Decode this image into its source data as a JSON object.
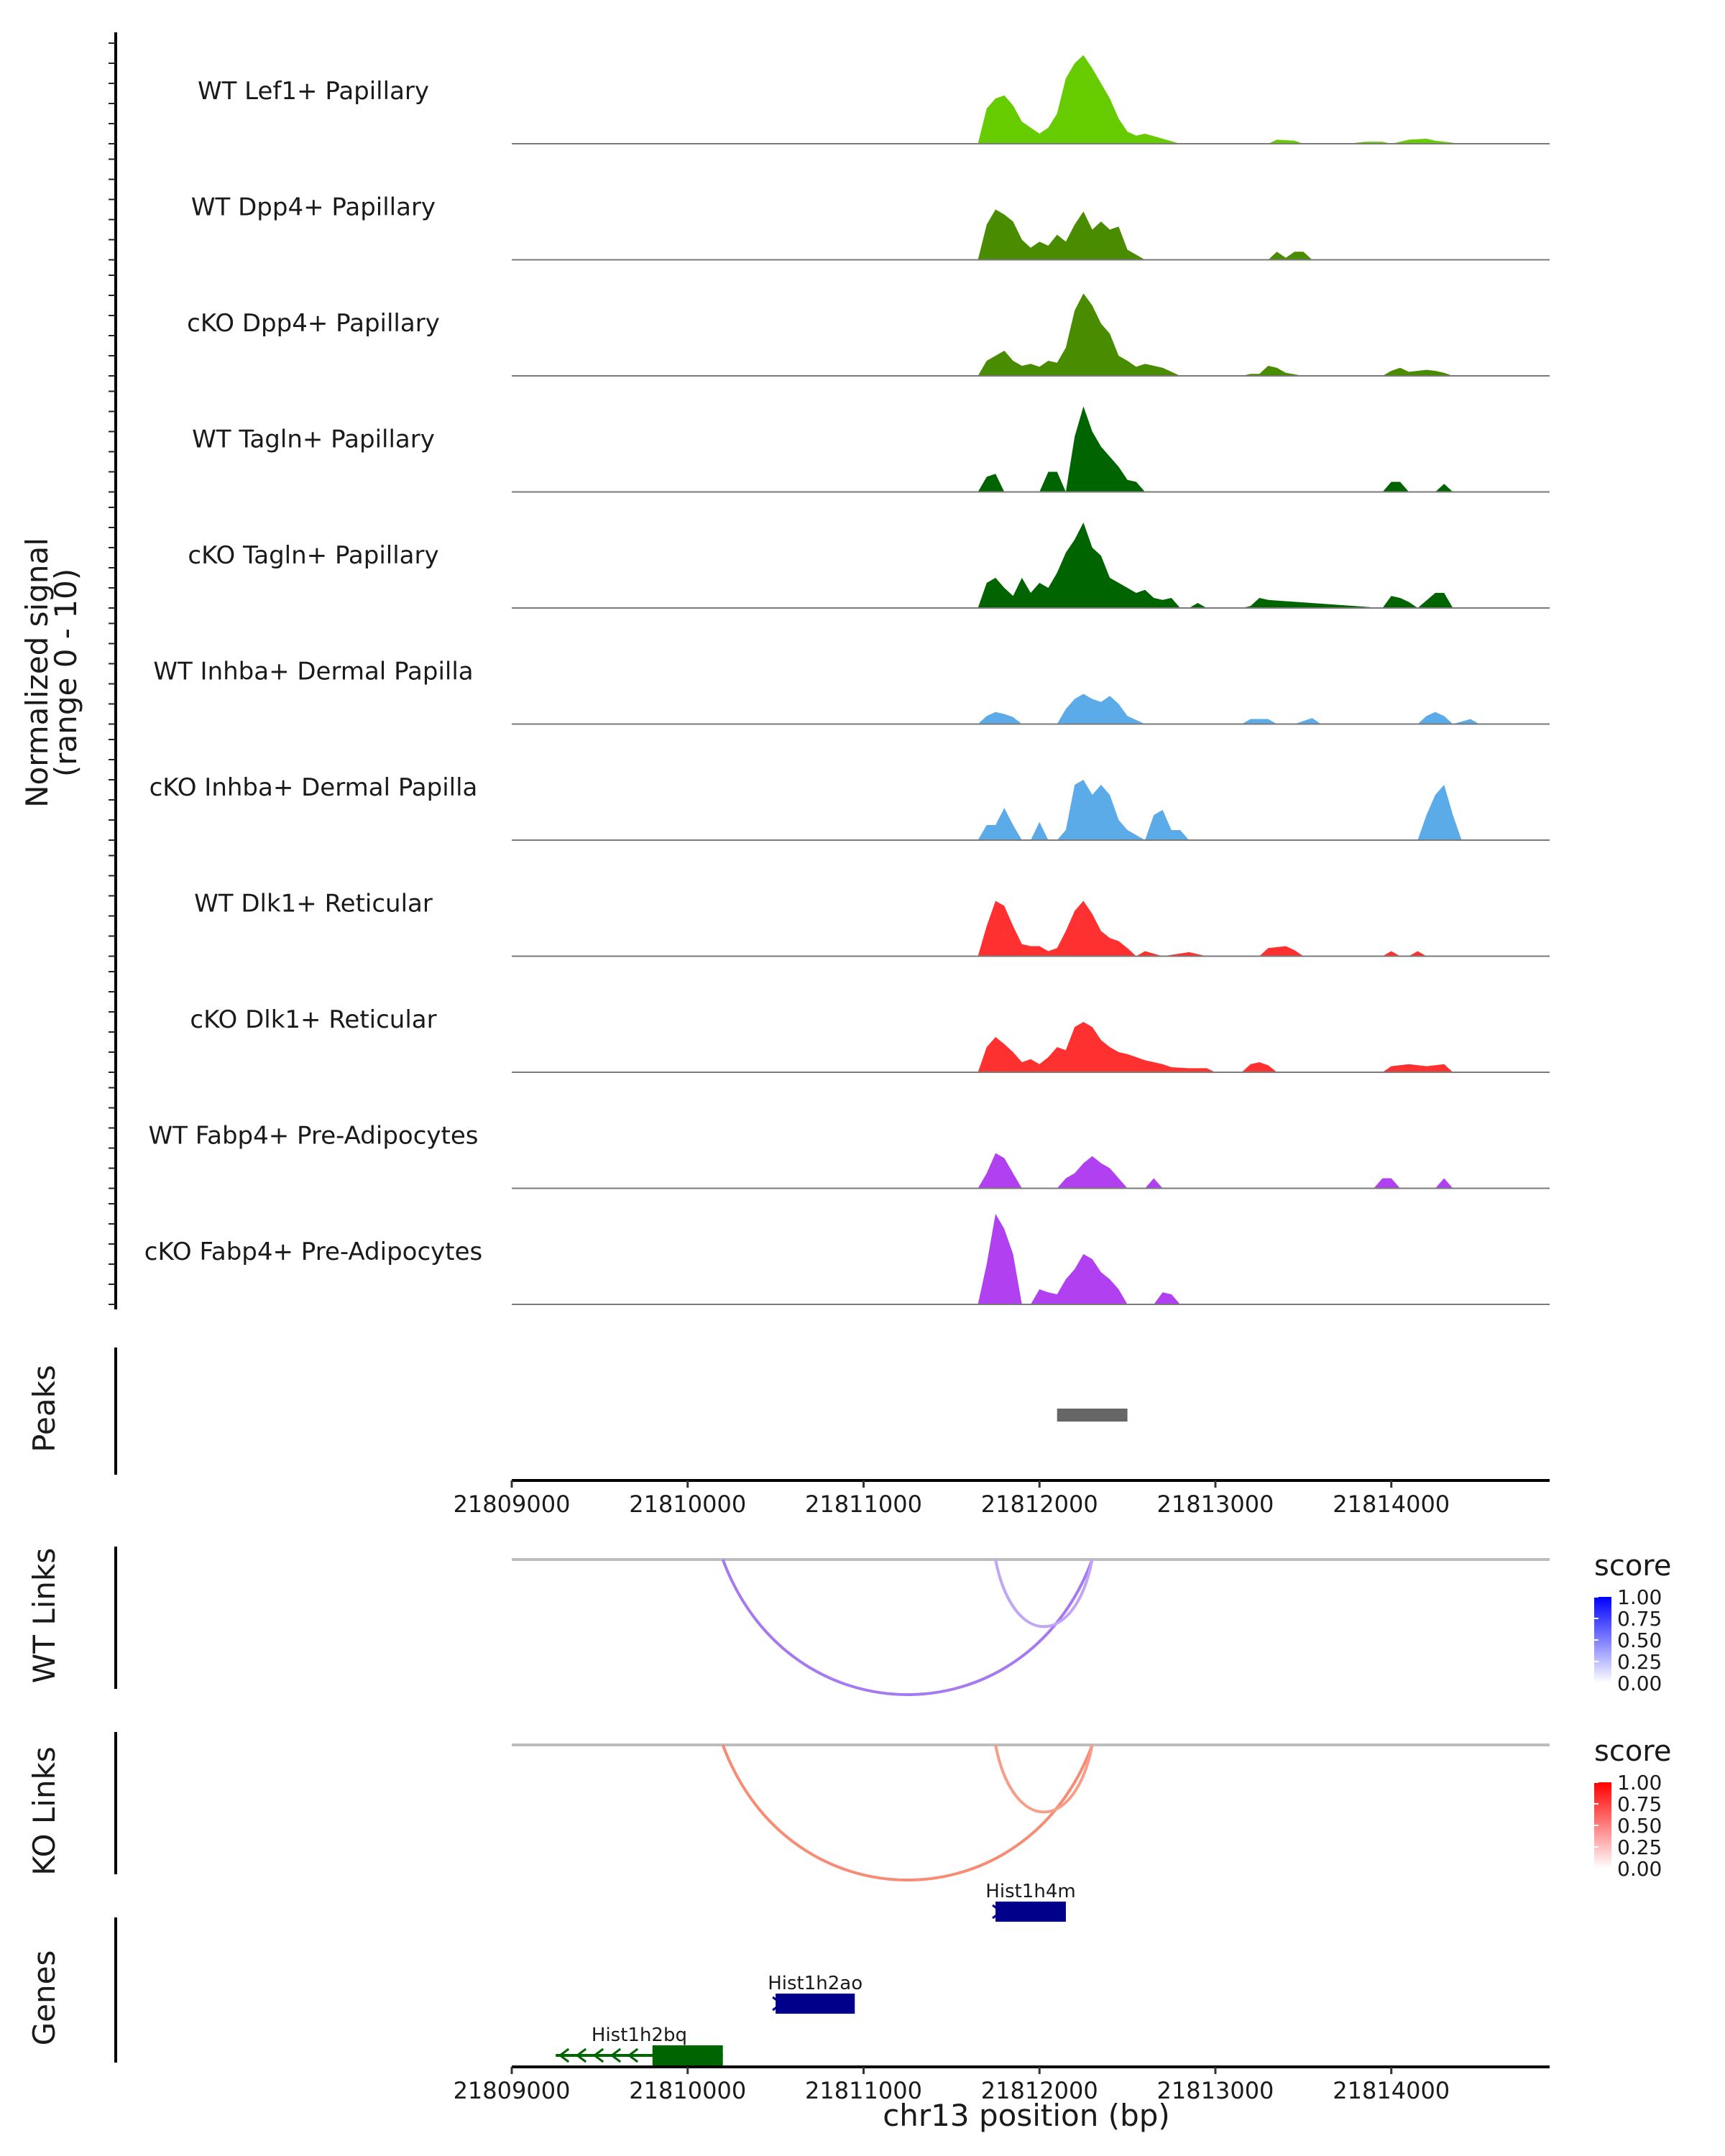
{
  "chart_data": {
    "type": "area",
    "title": "",
    "ylabel": "Normalized signal",
    "ylabel_sub": "(range 0 - 10)",
    "ylim": [
      0,
      10
    ],
    "xlabel": "chr13 position (bp)",
    "xlim": [
      21809000,
      21814900
    ],
    "x_ticks": [
      21809000,
      21810000,
      21811000,
      21812000,
      21813000,
      21814000
    ],
    "x_tick_labels": [
      "21809000",
      "21810000",
      "21811000",
      "21812000",
      "21813000",
      "21814000"
    ],
    "coverage_tracks": [
      {
        "name": "WT Lef1+ Papillary",
        "color": "#66cc00",
        "x": [
          21811650,
          21811700,
          21811750,
          21811800,
          21811850,
          21811900,
          21812000,
          21812050,
          21812100,
          21812150,
          21812200,
          21812250,
          21812300,
          21812350,
          21812400,
          21812450,
          21812500,
          21812550,
          21812600,
          21812700,
          21812800,
          21813300,
          21813350,
          21813450,
          21813500,
          21813750,
          21813850,
          21813950,
          21814000,
          21814050,
          21814100,
          21814200,
          21814250,
          21814300,
          21814400
        ],
        "y": [
          0,
          3.5,
          4.5,
          4.8,
          3.8,
          2.2,
          1.0,
          1.6,
          3.0,
          6.5,
          8.0,
          8.8,
          7.5,
          6.0,
          4.5,
          2.5,
          1.2,
          0.8,
          1.0,
          0.5,
          0,
          0,
          0.4,
          0.3,
          0,
          0,
          0.2,
          0.2,
          0,
          0.2,
          0.4,
          0.5,
          0.3,
          0.2,
          0
        ]
      },
      {
        "name": "WT Dpp4+ Papillary",
        "color": "#4a8c00",
        "x": [
          21811650,
          21811700,
          21811750,
          21811800,
          21811850,
          21811900,
          21811950,
          21812000,
          21812050,
          21812100,
          21812150,
          21812200,
          21812250,
          21812300,
          21812350,
          21812400,
          21812450,
          21812500,
          21812600,
          21813300,
          21813350,
          21813400,
          21813450,
          21813500,
          21813550
        ],
        "y": [
          0,
          3.5,
          5.0,
          4.5,
          3.8,
          2.0,
          1.2,
          1.8,
          1.4,
          2.5,
          1.8,
          3.5,
          4.8,
          3.0,
          3.8,
          3.0,
          3.3,
          1.0,
          0,
          0,
          0.8,
          0.2,
          0.8,
          0.8,
          0
        ]
      },
      {
        "name": "cKO Dpp4+ Papillary",
        "color": "#4a8c00",
        "x": [
          21811650,
          21811700,
          21811800,
          21811850,
          21811900,
          21811950,
          21812000,
          21812050,
          21812100,
          21812150,
          21812200,
          21812250,
          21812300,
          21812350,
          21812400,
          21812450,
          21812500,
          21812550,
          21812600,
          21812700,
          21812800,
          21813150,
          21813200,
          21813250,
          21813300,
          21813350,
          21813400,
          21813500,
          21813950,
          21814000,
          21814050,
          21814100,
          21814200,
          21814250,
          21814300,
          21814350
        ],
        "y": [
          0,
          1.5,
          2.5,
          1.5,
          1.0,
          1.2,
          0.9,
          1.5,
          1.3,
          2.8,
          6.5,
          8.2,
          7.0,
          5.2,
          4.2,
          2.0,
          1.5,
          0.9,
          1.2,
          0.8,
          0,
          0,
          0.2,
          0.2,
          1.0,
          0.8,
          0.3,
          0,
          0,
          0.5,
          0.8,
          0.4,
          0.6,
          0.5,
          0.3,
          0
        ]
      },
      {
        "name": "WT Tagln+ Papillary",
        "color": "#006400",
        "x": [
          21811650,
          21811700,
          21811750,
          21811800,
          21811850,
          21811900,
          21812000,
          21812050,
          21812100,
          21812150,
          21812200,
          21812250,
          21812300,
          21812350,
          21812400,
          21812450,
          21812500,
          21812550,
          21812600,
          21812700,
          21812800,
          21813150,
          21813200,
          21813350,
          21813450,
          21813600,
          21813950,
          21814000,
          21814050,
          21814100,
          21814250,
          21814300,
          21814350
        ],
        "y": [
          0,
          1.5,
          1.8,
          0,
          0,
          0,
          0,
          2.0,
          2.0,
          0,
          5.5,
          8.5,
          6.0,
          4.5,
          3.5,
          2.5,
          1.2,
          1.0,
          0,
          0,
          0,
          0,
          0,
          0,
          0,
          0,
          0,
          1.0,
          1.0,
          0,
          0,
          0.8,
          0
        ]
      },
      {
        "name": "cKO Tagln+ Papillary",
        "color": "#006400",
        "x": [
          21811650,
          21811700,
          21811750,
          21811800,
          21811850,
          21811900,
          21811950,
          21812000,
          21812050,
          21812100,
          21812150,
          21812200,
          21812250,
          21812300,
          21812350,
          21812400,
          21812450,
          21812500,
          21812550,
          21812600,
          21812650,
          21812700,
          21812750,
          21812800,
          21812850,
          21812900,
          21812950,
          21813150,
          21813200,
          21813250,
          21813300,
          21813950,
          21814000,
          21814050,
          21814100,
          21814150,
          21814250,
          21814300,
          21814350
        ],
        "y": [
          0,
          2.5,
          3.0,
          2.0,
          1.2,
          3.0,
          1.5,
          2.5,
          2.0,
          3.5,
          5.5,
          6.8,
          8.5,
          6.0,
          5.2,
          3.0,
          2.5,
          2.0,
          1.5,
          1.8,
          1.0,
          0.8,
          1.0,
          0,
          0,
          0.5,
          0,
          0,
          0.2,
          1.0,
          0.8,
          0,
          1.2,
          1.0,
          0.6,
          0,
          1.5,
          1.5,
          0
        ]
      },
      {
        "name": "WT Inhba+ Dermal Papilla",
        "color": "#5aabe8",
        "x": [
          21811650,
          21811700,
          21811750,
          21811800,
          21811850,
          21811900,
          21812100,
          21812150,
          21812200,
          21812250,
          21812300,
          21812350,
          21812400,
          21812450,
          21812500,
          21812600,
          21813150,
          21813200,
          21813300,
          21813350,
          21813450,
          21813550,
          21813600,
          21814150,
          21814200,
          21814250,
          21814300,
          21814350,
          21814450,
          21814500
        ],
        "y": [
          0,
          0.8,
          1.2,
          1.0,
          0.7,
          0,
          0,
          1.5,
          2.5,
          3.0,
          2.5,
          2.2,
          2.8,
          2.0,
          0.8,
          0,
          0,
          0.5,
          0.5,
          0,
          0,
          0.6,
          0,
          0,
          0.8,
          1.2,
          0.8,
          0,
          0.5,
          0
        ]
      },
      {
        "name": "cKO Inhba+ Dermal Papilla",
        "color": "#5aabe8",
        "x": [
          21811650,
          21811700,
          21811750,
          21811800,
          21811850,
          21811900,
          21811950,
          21812000,
          21812050,
          21812100,
          21812150,
          21812200,
          21812250,
          21812300,
          21812350,
          21812400,
          21812450,
          21812500,
          21812600,
          21812650,
          21812700,
          21812750,
          21812800,
          21812850,
          21814150,
          21814200,
          21814250,
          21814300,
          21814350,
          21814400
        ],
        "y": [
          0,
          1.5,
          1.5,
          3.2,
          1.5,
          0,
          0,
          1.8,
          0,
          0,
          1.0,
          5.5,
          6.0,
          4.5,
          5.5,
          4.5,
          2.0,
          1.0,
          0,
          2.5,
          3.0,
          1.0,
          1.0,
          0,
          0,
          2.5,
          4.5,
          5.5,
          2.5,
          0
        ]
      },
      {
        "name": "WT Dlk1+ Reticular",
        "color": "#ff3030",
        "x": [
          21811650,
          21811700,
          21811750,
          21811800,
          21811850,
          21811900,
          21811950,
          21812000,
          21812050,
          21812100,
          21812150,
          21812200,
          21812250,
          21812300,
          21812350,
          21812400,
          21812450,
          21812500,
          21812550,
          21812600,
          21812700,
          21812850,
          21812950,
          21813250,
          21813300,
          21813400,
          21813450,
          21813500,
          21813950,
          21814000,
          21814050,
          21814100,
          21814150,
          21814200
        ],
        "y": [
          0,
          3.0,
          5.5,
          5.0,
          3.0,
          1.2,
          1.0,
          1.0,
          0.5,
          0.8,
          2.5,
          4.5,
          5.5,
          4.2,
          2.5,
          1.8,
          1.5,
          0.8,
          0,
          0.5,
          0,
          0.4,
          0,
          0,
          0.8,
          1.0,
          0.6,
          0,
          0,
          0.5,
          0,
          0,
          0.5,
          0
        ]
      },
      {
        "name": "cKO Dlk1+ Reticular",
        "color": "#ff3030",
        "x": [
          21811650,
          21811700,
          21811750,
          21811800,
          21811850,
          21811900,
          21811950,
          21812000,
          21812050,
          21812100,
          21812150,
          21812200,
          21812250,
          21812300,
          21812350,
          21812400,
          21812450,
          21812500,
          21812550,
          21812600,
          21812650,
          21812700,
          21812750,
          21812850,
          21812950,
          21813000,
          21813150,
          21813200,
          21813250,
          21813300,
          21813350,
          21813950,
          21814000,
          21814100,
          21814200,
          21814300,
          21814350
        ],
        "y": [
          0,
          2.5,
          3.5,
          2.8,
          2.0,
          1.0,
          1.3,
          0.8,
          1.5,
          2.5,
          2.2,
          4.5,
          5.0,
          4.5,
          3.2,
          2.5,
          2.0,
          1.8,
          1.5,
          1.2,
          1.0,
          0.8,
          0.5,
          0.4,
          0.4,
          0,
          0,
          0.8,
          1.0,
          0.7,
          0,
          0,
          0.6,
          0.8,
          0.6,
          0.8,
          0
        ]
      },
      {
        "name": "WT Fabp4+ Pre-Adipocytes",
        "color": "#b040f0",
        "x": [
          21811650,
          21811700,
          21811750,
          21811800,
          21811850,
          21811900,
          21812100,
          21812150,
          21812200,
          21812250,
          21812300,
          21812350,
          21812400,
          21812450,
          21812500,
          21812600,
          21812650,
          21812700,
          21813900,
          21813950,
          21814000,
          21814050,
          21814250,
          21814300,
          21814350
        ],
        "y": [
          0,
          1.5,
          3.5,
          3.0,
          1.5,
          0,
          0,
          1.0,
          1.5,
          2.5,
          3.2,
          2.5,
          2.0,
          1.0,
          0,
          0,
          1.0,
          0,
          0,
          1.0,
          1.0,
          0,
          0,
          1.0,
          0
        ]
      },
      {
        "name": "cKO Fabp4+ Pre-Adipocytes",
        "color": "#b040f0",
        "x": [
          21811650,
          21811700,
          21811750,
          21811800,
          21811850,
          21811900,
          21811950,
          21812000,
          21812050,
          21812100,
          21812150,
          21812200,
          21812250,
          21812300,
          21812350,
          21812400,
          21812450,
          21812500,
          21812650,
          21812700,
          21812750,
          21812800
        ],
        "y": [
          0,
          4.0,
          9.0,
          7.5,
          5.0,
          0,
          0,
          1.5,
          1.2,
          1.0,
          2.5,
          3.5,
          5.0,
          4.5,
          3.2,
          2.5,
          1.5,
          0,
          0,
          1.2,
          1.0,
          0
        ]
      }
    ],
    "peaks_track": {
      "label": "Peaks",
      "regions": [
        {
          "start": 21812100,
          "end": 21812500
        }
      ],
      "color": "#666666"
    },
    "link_tracks": [
      {
        "label": "WT Links",
        "legend_title": "score",
        "color_low": "#ffffff",
        "color_high": "#0000ff",
        "legend_ticks": [
          "1.00",
          "0.75",
          "0.50",
          "0.25",
          "0.00"
        ],
        "links": [
          {
            "start": 21810200,
            "end": 21812300,
            "score": 0.55,
            "color": "#a57af0"
          },
          {
            "start": 21811750,
            "end": 21812300,
            "score": 0.35,
            "color": "#c0a6f4"
          }
        ]
      },
      {
        "label": "KO Links",
        "legend_title": "score",
        "color_low": "#ffffff",
        "color_high": "#ff0000",
        "legend_ticks": [
          "1.00",
          "0.75",
          "0.50",
          "0.25",
          "0.00"
        ],
        "links": [
          {
            "start": 21810200,
            "end": 21812300,
            "score": 0.55,
            "color": "#f78b76"
          },
          {
            "start": 21811750,
            "end": 21812300,
            "score": 0.5,
            "color": "#f89d87"
          }
        ]
      }
    ],
    "genes_track": {
      "label": "Genes",
      "genes": [
        {
          "name": "Hist1h4m",
          "start": 21811750,
          "end": 21812150,
          "strand": "+",
          "row": 0,
          "color": "#00008b"
        },
        {
          "name": "Hist1h2ao",
          "start": 21810500,
          "end": 21810950,
          "strand": "+",
          "row": 1,
          "color": "#00008b"
        },
        {
          "name": "Hist1h2bq",
          "start": 21809250,
          "end": 21810200,
          "strand": "-",
          "row": 2,
          "color": "#006400"
        }
      ]
    }
  }
}
